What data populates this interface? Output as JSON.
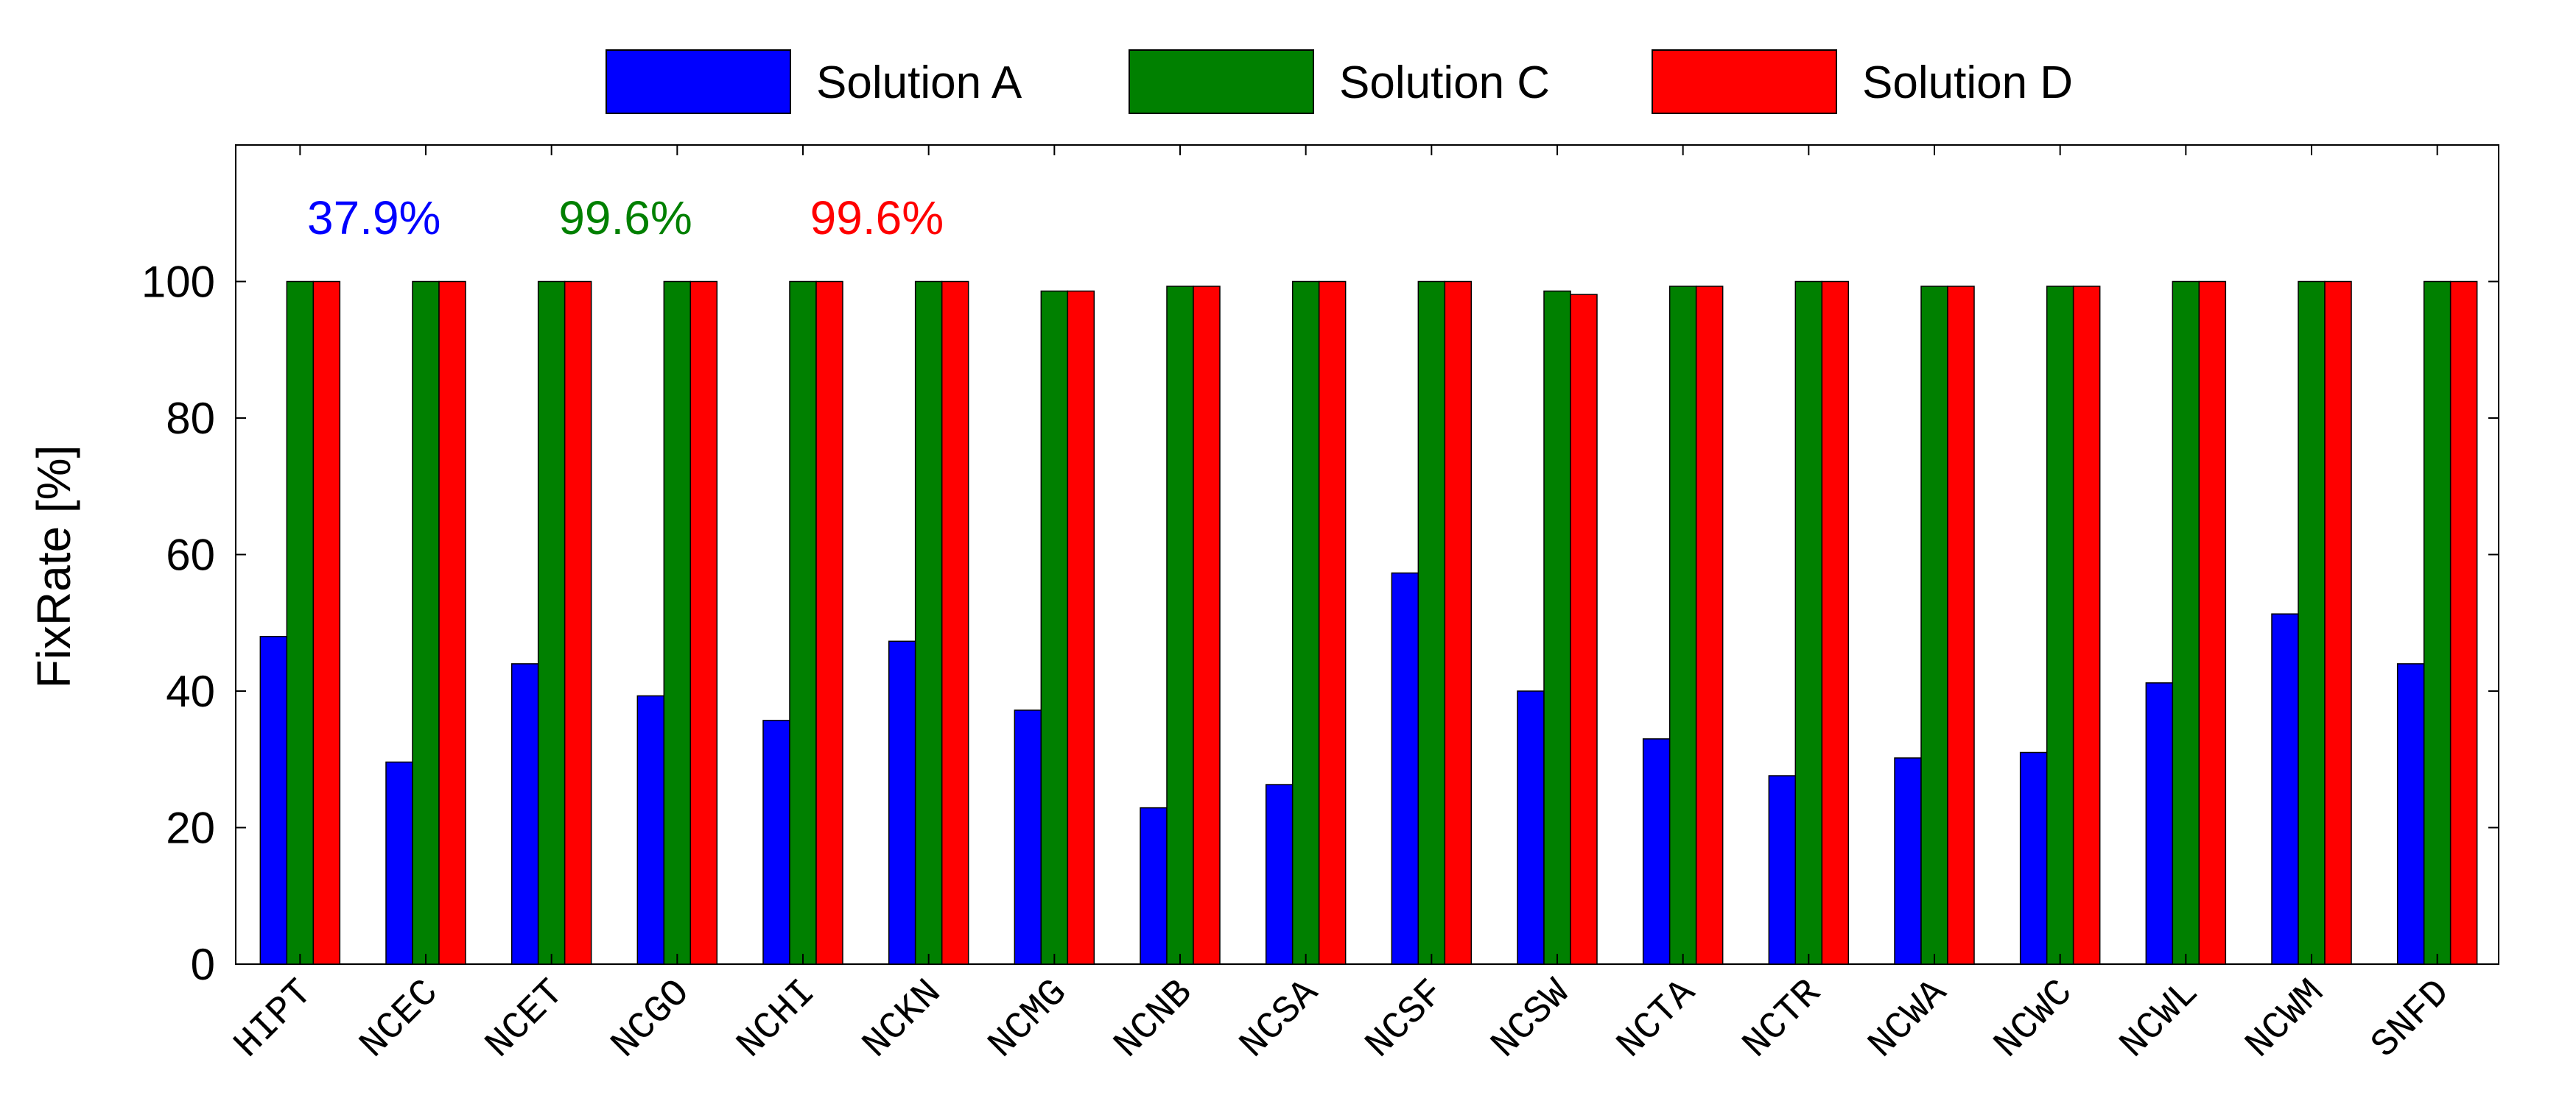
{
  "chart_data": {
    "type": "bar",
    "categories": [
      "HIPT",
      "NCEC",
      "NCET",
      "NCGO",
      "NCHI",
      "NCKN",
      "NCMG",
      "NCNB",
      "NCSA",
      "NCSF",
      "NCSW",
      "NCTA",
      "NCTR",
      "NCWA",
      "NCWC",
      "NCWL",
      "NCWM",
      "SNFD"
    ],
    "series": [
      {
        "name": "Solution A",
        "color": "#0000ff",
        "values": [
          48.0,
          29.6,
          44.0,
          39.3,
          35.7,
          47.3,
          37.2,
          22.9,
          26.3,
          57.3,
          40.0,
          33.0,
          27.6,
          30.2,
          31.0,
          41.2,
          51.3,
          44.0
        ]
      },
      {
        "name": "Solution C",
        "color": "#008000",
        "values": [
          100.0,
          100.0,
          100.0,
          100.0,
          100.0,
          100.0,
          98.6,
          99.3,
          100.0,
          100.0,
          98.6,
          99.3,
          100.0,
          99.3,
          99.3,
          100.0,
          100.0,
          100.0
        ]
      },
      {
        "name": "Solution D",
        "color": "#ff0000",
        "values": [
          100.0,
          100.0,
          100.0,
          100.0,
          100.0,
          100.0,
          98.6,
          99.3,
          100.0,
          100.0,
          98.1,
          99.3,
          100.0,
          99.3,
          99.3,
          100.0,
          100.0,
          100.0
        ]
      }
    ],
    "ylabel": "FixRate [%]",
    "xlabel": "",
    "ylim": [
      0,
      120
    ],
    "yticks": [
      0,
      20,
      40,
      60,
      80,
      100
    ],
    "grid": false,
    "legend_position": "top",
    "annotations": [
      {
        "text": "37.9%",
        "color": "#0000ff"
      },
      {
        "text": "99.6%",
        "color": "#008000"
      },
      {
        "text": "99.6%",
        "color": "#ff0000"
      }
    ]
  }
}
